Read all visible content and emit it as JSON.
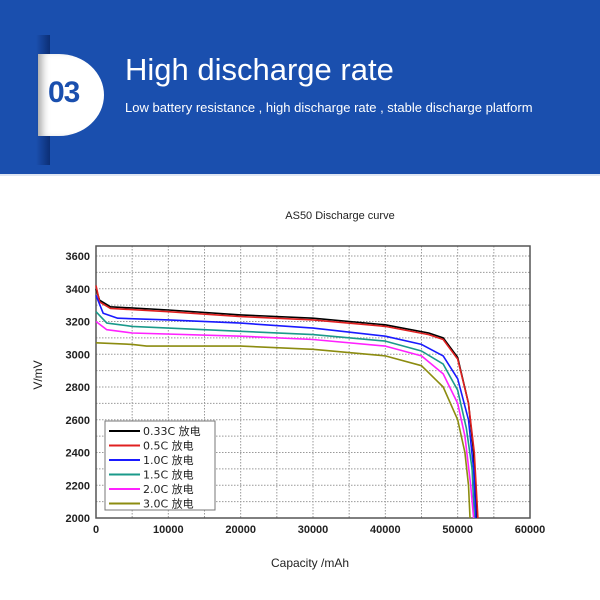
{
  "banner": {
    "number": "03",
    "title": "High discharge rate",
    "subtitle": "Low battery resistance , high discharge rate , stable discharge platform",
    "background_color": "#1a4fae"
  },
  "chart_data": {
    "type": "line",
    "title": "AS50  Discharge curve",
    "xlabel": "Capacity /mAh",
    "ylabel": "V/mV",
    "xlim": [
      0,
      60000
    ],
    "ylim": [
      2000,
      3600
    ],
    "xticks": [
      "0",
      "10000",
      "20000",
      "30000",
      "40000",
      "50000",
      "60000"
    ],
    "yticks": [
      "2000",
      "2200",
      "2400",
      "2600",
      "2800",
      "3000",
      "3200",
      "3400",
      "3600"
    ],
    "grid": true,
    "legend_placement": "bottom-left",
    "series": [
      {
        "name": "0.33C 放电",
        "color": "#000000",
        "points": [
          [
            0,
            3400
          ],
          [
            500,
            3330
          ],
          [
            2000,
            3290
          ],
          [
            10000,
            3270
          ],
          [
            20000,
            3240
          ],
          [
            30000,
            3220
          ],
          [
            40000,
            3180
          ],
          [
            46000,
            3130
          ],
          [
            48000,
            3100
          ],
          [
            50000,
            2980
          ],
          [
            51500,
            2700
          ],
          [
            52200,
            2400
          ],
          [
            52600,
            2000
          ]
        ]
      },
      {
        "name": "0.5C 放电",
        "color": "#e02020",
        "points": [
          [
            0,
            3420
          ],
          [
            500,
            3320
          ],
          [
            2000,
            3280
          ],
          [
            10000,
            3260
          ],
          [
            20000,
            3230
          ],
          [
            30000,
            3210
          ],
          [
            40000,
            3170
          ],
          [
            46000,
            3120
          ],
          [
            48000,
            3090
          ],
          [
            50000,
            2970
          ],
          [
            51500,
            2700
          ],
          [
            52300,
            2400
          ],
          [
            52800,
            2000
          ]
        ]
      },
      {
        "name": "1.0C 放电",
        "color": "#1a1aff",
        "points": [
          [
            0,
            3360
          ],
          [
            1000,
            3250
          ],
          [
            3000,
            3220
          ],
          [
            10000,
            3210
          ],
          [
            20000,
            3190
          ],
          [
            30000,
            3160
          ],
          [
            40000,
            3110
          ],
          [
            45000,
            3060
          ],
          [
            48000,
            2990
          ],
          [
            50000,
            2850
          ],
          [
            51500,
            2600
          ],
          [
            52200,
            2300
          ],
          [
            52500,
            2000
          ]
        ]
      },
      {
        "name": "1.5C 放电",
        "color": "#1a9a8a",
        "points": [
          [
            0,
            3260
          ],
          [
            1500,
            3190
          ],
          [
            5000,
            3170
          ],
          [
            20000,
            3140
          ],
          [
            30000,
            3120
          ],
          [
            40000,
            3080
          ],
          [
            45000,
            3020
          ],
          [
            48000,
            2940
          ],
          [
            50000,
            2780
          ],
          [
            51200,
            2550
          ],
          [
            52000,
            2300
          ],
          [
            52300,
            2000
          ]
        ]
      },
      {
        "name": "2.0C 放电",
        "color": "#ff22ff",
        "points": [
          [
            0,
            3200
          ],
          [
            1500,
            3150
          ],
          [
            5000,
            3130
          ],
          [
            20000,
            3110
          ],
          [
            30000,
            3090
          ],
          [
            40000,
            3050
          ],
          [
            45000,
            2990
          ],
          [
            48000,
            2880
          ],
          [
            50000,
            2700
          ],
          [
            51000,
            2500
          ],
          [
            51800,
            2200
          ],
          [
            52200,
            2000
          ]
        ]
      },
      {
        "name": "3.0C 放电",
        "color": "#8c8c10",
        "points": [
          [
            0,
            3070
          ],
          [
            5000,
            3060
          ],
          [
            7000,
            3050
          ],
          [
            20000,
            3050
          ],
          [
            30000,
            3030
          ],
          [
            40000,
            2990
          ],
          [
            45000,
            2930
          ],
          [
            48000,
            2800
          ],
          [
            50000,
            2600
          ],
          [
            51000,
            2400
          ],
          [
            51500,
            2200
          ],
          [
            51700,
            2000
          ]
        ]
      }
    ]
  }
}
